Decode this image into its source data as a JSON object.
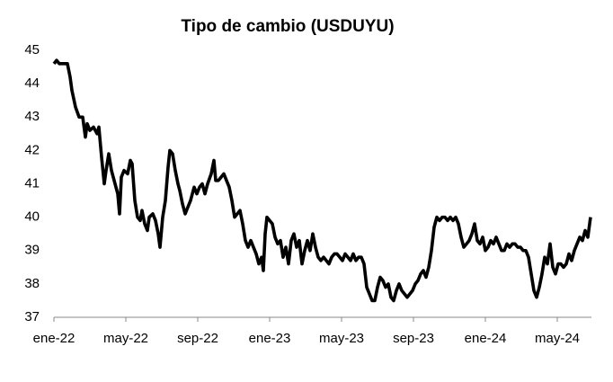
{
  "chart_data": {
    "type": "line",
    "title": "Tipo de cambio (USDUYU)",
    "x": [
      0,
      0.15,
      0.3,
      0.5,
      0.75,
      0.9,
      1,
      1.2,
      1.4,
      1.6,
      1.75,
      1.85,
      2,
      2.2,
      2.4,
      2.5,
      2.65,
      2.8,
      2.9,
      3.05,
      3.2,
      3.4,
      3.55,
      3.65,
      3.75,
      3.9,
      4.1,
      4.25,
      4.35,
      4.5,
      4.65,
      4.8,
      4.9,
      5.05,
      5.2,
      5.3,
      5.5,
      5.65,
      5.8,
      5.9,
      6.05,
      6.2,
      6.35,
      6.45,
      6.6,
      6.75,
      6.9,
      7,
      7.15,
      7.3,
      7.45,
      7.6,
      7.8,
      7.95,
      8.1,
      8.25,
      8.4,
      8.55,
      8.75,
      8.9,
      9,
      9.15,
      9.3,
      9.45,
      9.6,
      9.75,
      9.9,
      10.05,
      10.2,
      10.35,
      10.5,
      10.65,
      10.8,
      10.95,
      11.1,
      11.25,
      11.4,
      11.55,
      11.65,
      11.75,
      11.85,
      12,
      12.15,
      12.3,
      12.45,
      12.6,
      12.75,
      12.9,
      13.05,
      13.2,
      13.35,
      13.5,
      13.65,
      13.8,
      13.95,
      14.1,
      14.25,
      14.4,
      14.55,
      14.7,
      14.85,
      15,
      15.15,
      15.3,
      15.45,
      15.6,
      15.75,
      15.9,
      16.05,
      16.2,
      16.35,
      16.5,
      16.65,
      16.8,
      16.95,
      17.1,
      17.25,
      17.4,
      17.55,
      17.7,
      17.85,
      18,
      18.15,
      18.3,
      18.45,
      18.6,
      18.75,
      18.9,
      19.05,
      19.2,
      19.35,
      19.5,
      19.65,
      19.8,
      19.95,
      20.1,
      20.25,
      20.4,
      20.55,
      20.7,
      20.85,
      21,
      21.15,
      21.3,
      21.45,
      21.6,
      21.75,
      21.9,
      22.05,
      22.2,
      22.35,
      22.5,
      22.65,
      22.8,
      22.95,
      23.1,
      23.25,
      23.4,
      23.55,
      23.7,
      23.85,
      24,
      24.15,
      24.3,
      24.45,
      24.6,
      24.75,
      24.9,
      25.05,
      25.2,
      25.35,
      25.5,
      25.65,
      25.8,
      25.95,
      26.1,
      26.25,
      26.4,
      26.55,
      26.7,
      26.85,
      27,
      27.15,
      27.3,
      27.45,
      27.6,
      27.75,
      27.9,
      28.05,
      28.2,
      28.35,
      28.5,
      28.65,
      28.8,
      28.95,
      29.1,
      29.25,
      29.4,
      29.55,
      29.7,
      29.85
    ],
    "series": [
      {
        "color": "#000000",
        "values": [
          44.6,
          44.7,
          44.6,
          44.6,
          44.6,
          44.2,
          43.8,
          43.3,
          43.0,
          43.0,
          42.4,
          42.8,
          42.6,
          42.7,
          42.5,
          42.7,
          41.8,
          41.0,
          41.4,
          41.9,
          41.4,
          41.0,
          40.7,
          40.1,
          41.2,
          41.4,
          41.3,
          41.7,
          41.6,
          40.5,
          40.0,
          39.9,
          40.2,
          39.8,
          39.6,
          40.0,
          40.1,
          39.9,
          39.5,
          39.1,
          40.0,
          40.5,
          41.5,
          42.0,
          41.9,
          41.4,
          41.0,
          40.8,
          40.4,
          40.1,
          40.3,
          40.5,
          40.9,
          40.7,
          40.9,
          41.0,
          40.7,
          41.0,
          41.3,
          41.7,
          41.1,
          41.1,
          41.2,
          41.3,
          41.1,
          40.9,
          40.5,
          40.0,
          40.1,
          40.2,
          39.8,
          39.3,
          39.1,
          39.3,
          39.1,
          38.9,
          38.6,
          38.8,
          38.4,
          39.5,
          40.0,
          39.9,
          39.8,
          39.4,
          39.2,
          39.3,
          38.8,
          39.1,
          38.6,
          39.3,
          39.5,
          39.1,
          39.3,
          38.6,
          39.0,
          39.3,
          39.0,
          39.5,
          39.1,
          38.8,
          38.7,
          38.8,
          38.7,
          38.6,
          38.8,
          38.9,
          38.9,
          38.8,
          38.7,
          38.9,
          38.8,
          38.7,
          38.9,
          38.7,
          38.8,
          38.8,
          38.6,
          37.9,
          37.7,
          37.5,
          37.5,
          37.9,
          38.2,
          38.1,
          37.9,
          38.0,
          37.6,
          37.5,
          37.8,
          38.0,
          37.8,
          37.7,
          37.6,
          37.7,
          37.8,
          38.0,
          38.1,
          38.3,
          38.4,
          38.2,
          38.5,
          39.0,
          39.7,
          40.0,
          39.9,
          40.0,
          40.0,
          39.9,
          40.0,
          39.9,
          40.0,
          39.8,
          39.4,
          39.1,
          39.2,
          39.3,
          39.5,
          39.8,
          39.3,
          39.2,
          39.4,
          39.0,
          39.1,
          39.3,
          39.2,
          39.4,
          39.2,
          39.0,
          39.0,
          39.2,
          39.1,
          39.2,
          39.2,
          39.1,
          39.1,
          39.0,
          39.0,
          38.8,
          38.3,
          37.8,
          37.6,
          37.9,
          38.3,
          38.8,
          38.6,
          39.2,
          38.5,
          38.3,
          38.6,
          38.6,
          38.5,
          38.6,
          38.9,
          38.7,
          39.0,
          39.2,
          39.4,
          39.3,
          39.6,
          39.4,
          40.0
        ]
      }
    ],
    "xlim": [
      0,
      29.9
    ],
    "xticks": [
      {
        "value": 0,
        "label": "ene-22"
      },
      {
        "value": 4,
        "label": "may-22"
      },
      {
        "value": 8,
        "label": "sep-22"
      },
      {
        "value": 12,
        "label": "ene-23"
      },
      {
        "value": 16,
        "label": "may-23"
      },
      {
        "value": 20,
        "label": "sep-23"
      },
      {
        "value": 24,
        "label": "ene-24"
      },
      {
        "value": 28,
        "label": "may-24"
      }
    ],
    "ylim": [
      37,
      45
    ],
    "yticks": [
      37,
      38,
      39,
      40,
      41,
      42,
      43,
      44,
      45
    ]
  }
}
